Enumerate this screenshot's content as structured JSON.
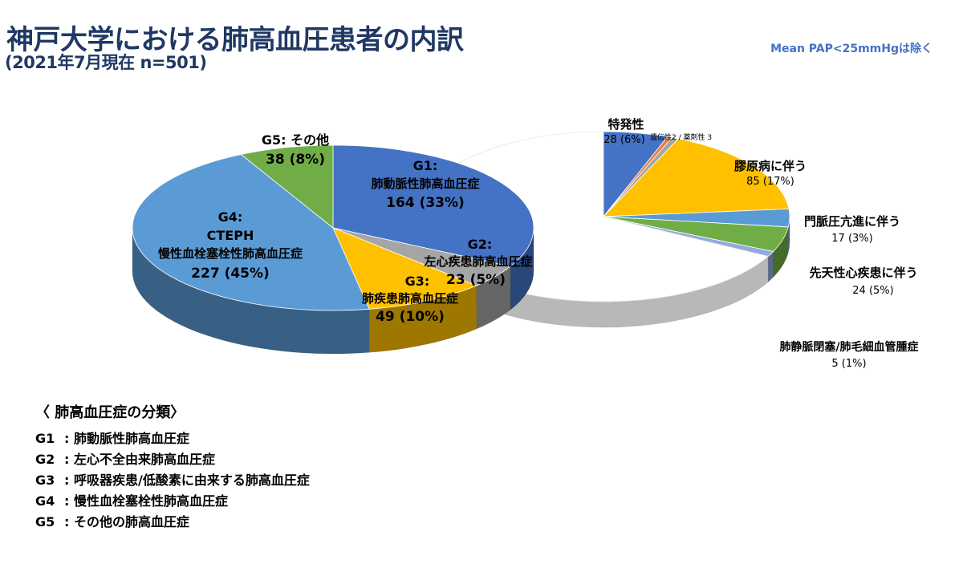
{
  "title": "神戸大学における肺高血圧患者の内訳",
  "subtitle": "(2021年7月現在 n=501)",
  "note": "Mean PAP<25mmHgは除く",
  "chart_data": [
    {
      "type": "pie",
      "title": "",
      "slices": [
        {
          "key": "g1",
          "label": "G1:",
          "sublabel": "肺動脈性肺高血圧症",
          "value_label": "164 (33%)",
          "value": 164,
          "percent": 33,
          "color": "#4472c4"
        },
        {
          "key": "g2",
          "label": "G2:",
          "sublabel": "左心疾患肺高血圧症",
          "value_label": "23 (5%)",
          "value": 23,
          "percent": 5,
          "color": "#a5a5a5"
        },
        {
          "key": "g3",
          "label": "G3:",
          "sublabel": "肺疾患肺高血圧症",
          "value_label": "49 (10%)",
          "value": 49,
          "percent": 10,
          "color": "#ffc000"
        },
        {
          "key": "g4",
          "label": "G4:",
          "label2": "CTEPH",
          "sublabel": "慢性血栓塞栓性肺高血圧症",
          "value_label": "227 (45%)",
          "value": 227,
          "percent": 45,
          "color": "#5b9bd5"
        },
        {
          "key": "g5",
          "label": "G5: その他",
          "value_label": "38 (8%)",
          "value": 38,
          "percent": 8,
          "color": "#70ad47"
        }
      ]
    },
    {
      "type": "pie",
      "title": "",
      "slices": [
        {
          "key": "idiopathic",
          "label": "特発性",
          "value_label": "28 (6%)",
          "value": 28,
          "percent": 6,
          "color": "#4472c4"
        },
        {
          "key": "hereditary",
          "label": "遺伝性2 / 薬剤性 3",
          "value": 2,
          "color": "#ed7d31"
        },
        {
          "key": "drug",
          "value": 3,
          "color": "#a5a5a5"
        },
        {
          "key": "ctd",
          "label": "膠原病に伴う",
          "value_label": "85 (17%)",
          "value": 85,
          "percent": 17,
          "color": "#ffc000"
        },
        {
          "key": "portal",
          "label": "門脈圧亢進に伴う",
          "value_label": "17 (3%)",
          "value": 17,
          "percent": 3,
          "color": "#5b9bd5"
        },
        {
          "key": "chd",
          "label": "先天性心疾患に伴う",
          "value_label": "24 (5%)",
          "value": 24,
          "percent": 5,
          "color": "#70ad47"
        },
        {
          "key": "pvod",
          "label": "肺静脈閉塞/肺毛細血管腫症",
          "value_label": "5 (1%)",
          "value": 5,
          "percent": 1,
          "color": "#8faadc"
        },
        {
          "key": "rest",
          "value": 337,
          "color": "#ffffff"
        }
      ]
    }
  ],
  "legend": {
    "title": "〈 肺高血圧症の分類〉",
    "items": [
      {
        "code": "G1",
        "text": ": 肺動脈性肺高血圧症"
      },
      {
        "code": "G2",
        "text": ": 左心不全由来肺高血圧症"
      },
      {
        "code": "G3",
        "text": ": 呼吸器疾患/低酸素に由来する肺高血圧症"
      },
      {
        "code": "G4",
        "text": ": 慢性血栓塞栓性肺高血圧症"
      },
      {
        "code": "G5",
        "text": ": その他の肺高血圧症"
      }
    ]
  }
}
